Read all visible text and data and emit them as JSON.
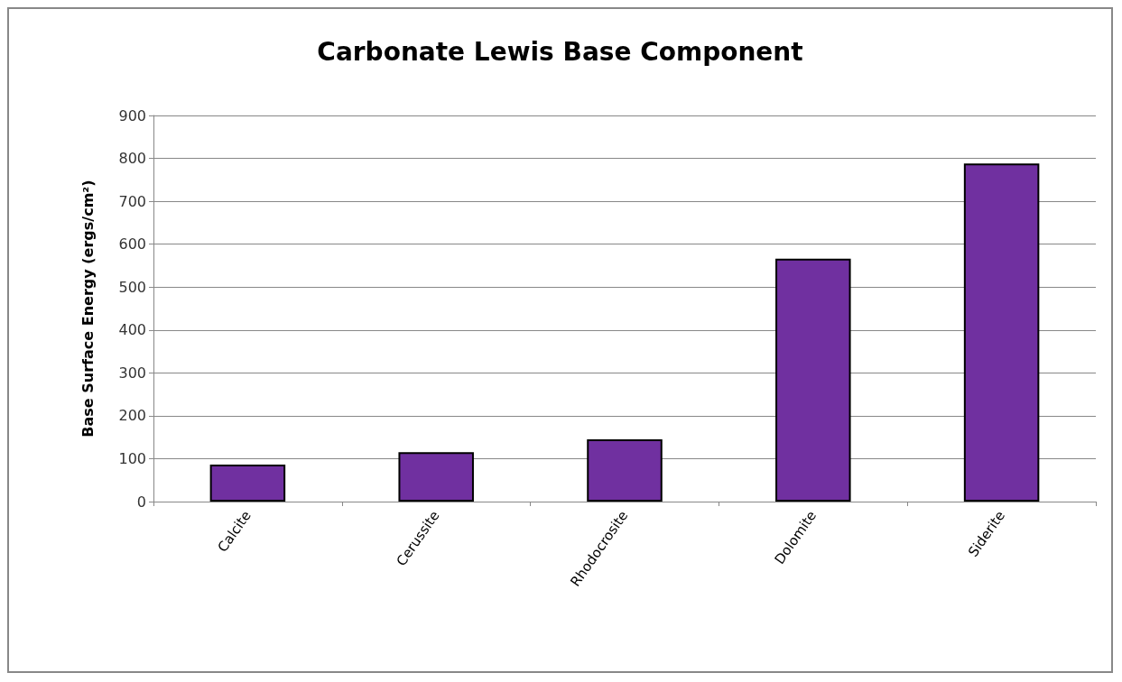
{
  "chart_data": {
    "type": "bar",
    "title": "Carbonate Lewis Base Component",
    "ylabel": "Base Surface Energy (ergs/cm²)",
    "categories": [
      "Calcite",
      "Cerussite",
      "Rhodocrosite",
      "Dolomite",
      "Siderite"
    ],
    "values": [
      86,
      115,
      145,
      566,
      788
    ],
    "color": "#7030a0",
    "ylim": [
      0,
      900
    ],
    "yticks": [
      0,
      100,
      200,
      300,
      400,
      500,
      600,
      700,
      800,
      900
    ],
    "grid": "y"
  }
}
